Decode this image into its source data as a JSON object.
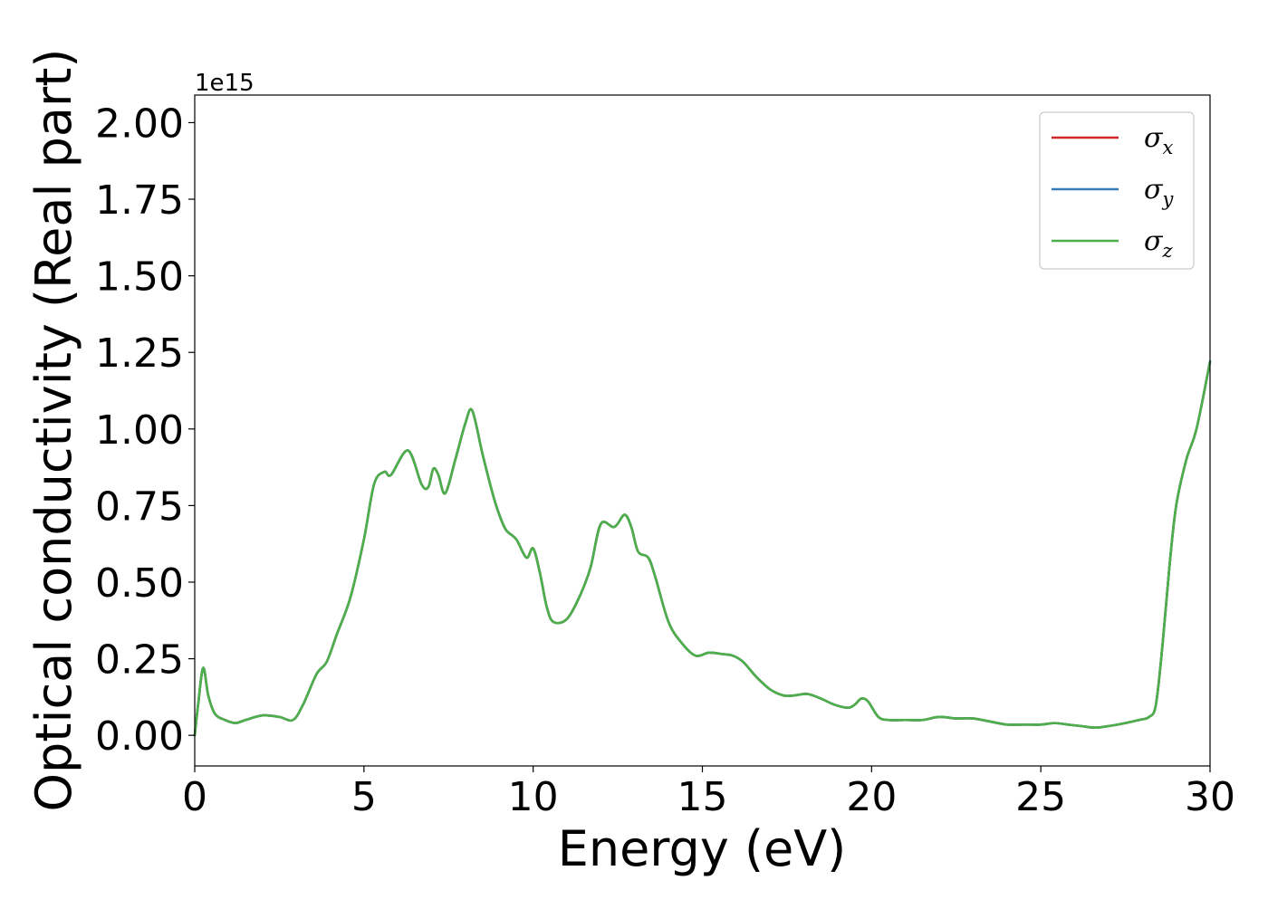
{
  "chart_data": {
    "type": "line",
    "title": "",
    "xlabel": "Energy (eV)",
    "ylabel": "Optical conductivity (Real part)",
    "y_offset_label": "1e15",
    "xlim": [
      0,
      30
    ],
    "ylim": [
      -0.1,
      2.09
    ],
    "x_ticks": [
      0,
      5,
      10,
      15,
      20,
      25,
      30
    ],
    "x_tick_labels": [
      "0",
      "5",
      "10",
      "15",
      "20",
      "25",
      "30"
    ],
    "y_ticks": [
      0.0,
      0.25,
      0.5,
      0.75,
      1.0,
      1.25,
      1.5,
      1.75,
      2.0
    ],
    "y_tick_labels": [
      "0.00",
      "0.25",
      "0.50",
      "0.75",
      "1.00",
      "1.25",
      "1.50",
      "1.75",
      "2.00"
    ],
    "grid": false,
    "legend_position": "top-right",
    "series": [
      {
        "name": "σx",
        "symbol": "σ",
        "subscript": "x",
        "color": "#d62728",
        "x": [
          0,
          0.1,
          0.25,
          0.4,
          0.6,
          0.9,
          1.2,
          1.5,
          2.0,
          2.5,
          2.9,
          3.2,
          3.6,
          3.9,
          4.2,
          4.6,
          5.0,
          5.3,
          5.6,
          5.8,
          6.3,
          6.7,
          6.9,
          7.05,
          7.2,
          7.4,
          7.7,
          8.0,
          8.2,
          8.5,
          8.8,
          9.0,
          9.2,
          9.5,
          9.8,
          10.0,
          10.2,
          10.4,
          10.6,
          11.0,
          11.4,
          11.7,
          12.0,
          12.4,
          12.7,
          12.9,
          13.1,
          13.4,
          13.6,
          14.0,
          14.4,
          14.8,
          15.2,
          15.6,
          15.9,
          16.2,
          16.6,
          17.0,
          17.4,
          17.7,
          18.1,
          18.5,
          18.9,
          19.3,
          19.5,
          19.7,
          19.9,
          20.2,
          20.5,
          21.0,
          21.5,
          22.0,
          22.5,
          23.0,
          23.5,
          24.0,
          24.5,
          25.0,
          25.4,
          25.8,
          26.2,
          26.6,
          27.0,
          27.5,
          27.9,
          28.2,
          28.4,
          28.6,
          28.8,
          29.0,
          29.3,
          29.6,
          30.0
        ],
        "values": [
          0.0,
          0.1,
          0.22,
          0.13,
          0.07,
          0.05,
          0.04,
          0.05,
          0.065,
          0.06,
          0.05,
          0.1,
          0.2,
          0.24,
          0.33,
          0.45,
          0.64,
          0.82,
          0.86,
          0.85,
          0.93,
          0.82,
          0.81,
          0.87,
          0.85,
          0.79,
          0.9,
          1.02,
          1.06,
          0.92,
          0.79,
          0.72,
          0.67,
          0.64,
          0.58,
          0.61,
          0.53,
          0.42,
          0.37,
          0.38,
          0.46,
          0.55,
          0.69,
          0.68,
          0.72,
          0.68,
          0.6,
          0.58,
          0.52,
          0.37,
          0.3,
          0.26,
          0.27,
          0.265,
          0.26,
          0.24,
          0.19,
          0.15,
          0.13,
          0.13,
          0.135,
          0.12,
          0.1,
          0.09,
          0.1,
          0.12,
          0.11,
          0.06,
          0.05,
          0.05,
          0.05,
          0.06,
          0.055,
          0.055,
          0.045,
          0.035,
          0.035,
          0.035,
          0.04,
          0.035,
          0.03,
          0.025,
          0.03,
          0.04,
          0.05,
          0.06,
          0.1,
          0.3,
          0.55,
          0.75,
          0.9,
          1.0,
          1.22
        ]
      },
      {
        "name": "σy",
        "symbol": "σ",
        "subscript": "y",
        "color": "#377eb8",
        "x": [
          0,
          0.1,
          0.25,
          0.4,
          0.6,
          0.9,
          1.2,
          1.5,
          2.0,
          2.5,
          2.9,
          3.2,
          3.6,
          3.9,
          4.2,
          4.6,
          5.0,
          5.3,
          5.6,
          5.8,
          6.3,
          6.7,
          6.9,
          7.05,
          7.2,
          7.4,
          7.7,
          8.0,
          8.2,
          8.5,
          8.8,
          9.0,
          9.2,
          9.5,
          9.8,
          10.0,
          10.2,
          10.4,
          10.6,
          11.0,
          11.4,
          11.7,
          12.0,
          12.4,
          12.7,
          12.9,
          13.1,
          13.4,
          13.6,
          14.0,
          14.4,
          14.8,
          15.2,
          15.6,
          15.9,
          16.2,
          16.6,
          17.0,
          17.4,
          17.7,
          18.1,
          18.5,
          18.9,
          19.3,
          19.5,
          19.7,
          19.9,
          20.2,
          20.5,
          21.0,
          21.5,
          22.0,
          22.5,
          23.0,
          23.5,
          24.0,
          24.5,
          25.0,
          25.4,
          25.8,
          26.2,
          26.6,
          27.0,
          27.5,
          27.9,
          28.2,
          28.4,
          28.6,
          28.8,
          29.0,
          29.3,
          29.6,
          30.0
        ],
        "values": [
          0.0,
          0.1,
          0.22,
          0.13,
          0.07,
          0.05,
          0.04,
          0.05,
          0.065,
          0.06,
          0.05,
          0.1,
          0.2,
          0.24,
          0.33,
          0.45,
          0.64,
          0.82,
          0.86,
          0.85,
          0.93,
          0.82,
          0.81,
          0.87,
          0.85,
          0.79,
          0.9,
          1.02,
          1.06,
          0.92,
          0.79,
          0.72,
          0.67,
          0.64,
          0.58,
          0.61,
          0.53,
          0.42,
          0.37,
          0.38,
          0.46,
          0.55,
          0.69,
          0.68,
          0.72,
          0.68,
          0.6,
          0.58,
          0.52,
          0.37,
          0.3,
          0.26,
          0.27,
          0.265,
          0.26,
          0.24,
          0.19,
          0.15,
          0.13,
          0.13,
          0.135,
          0.12,
          0.1,
          0.09,
          0.1,
          0.12,
          0.11,
          0.06,
          0.05,
          0.05,
          0.05,
          0.06,
          0.055,
          0.055,
          0.045,
          0.035,
          0.035,
          0.035,
          0.04,
          0.035,
          0.03,
          0.025,
          0.03,
          0.04,
          0.05,
          0.06,
          0.1,
          0.3,
          0.55,
          0.75,
          0.9,
          1.0,
          1.22
        ]
      },
      {
        "name": "σz",
        "symbol": "σ",
        "subscript": "z",
        "color": "#4daf4a",
        "x": [
          0,
          0.1,
          0.25,
          0.4,
          0.6,
          0.9,
          1.2,
          1.5,
          2.0,
          2.5,
          2.9,
          3.2,
          3.6,
          3.9,
          4.2,
          4.6,
          5.0,
          5.3,
          5.6,
          5.8,
          6.3,
          6.7,
          6.9,
          7.05,
          7.2,
          7.4,
          7.7,
          8.0,
          8.2,
          8.5,
          8.8,
          9.0,
          9.2,
          9.5,
          9.8,
          10.0,
          10.2,
          10.4,
          10.6,
          11.0,
          11.4,
          11.7,
          12.0,
          12.4,
          12.7,
          12.9,
          13.1,
          13.4,
          13.6,
          14.0,
          14.4,
          14.8,
          15.2,
          15.6,
          15.9,
          16.2,
          16.6,
          17.0,
          17.4,
          17.7,
          18.1,
          18.5,
          18.9,
          19.3,
          19.5,
          19.7,
          19.9,
          20.2,
          20.5,
          21.0,
          21.5,
          22.0,
          22.5,
          23.0,
          23.5,
          24.0,
          24.5,
          25.0,
          25.4,
          25.8,
          26.2,
          26.6,
          27.0,
          27.5,
          27.9,
          28.2,
          28.4,
          28.6,
          28.8,
          29.0,
          29.3,
          29.6,
          30.0
        ],
        "values": [
          0.0,
          0.1,
          0.22,
          0.13,
          0.07,
          0.05,
          0.04,
          0.05,
          0.065,
          0.06,
          0.05,
          0.1,
          0.2,
          0.24,
          0.33,
          0.45,
          0.64,
          0.82,
          0.86,
          0.85,
          0.93,
          0.82,
          0.81,
          0.87,
          0.85,
          0.79,
          0.9,
          1.02,
          1.06,
          0.92,
          0.79,
          0.72,
          0.67,
          0.64,
          0.58,
          0.61,
          0.53,
          0.42,
          0.37,
          0.38,
          0.46,
          0.55,
          0.69,
          0.68,
          0.72,
          0.68,
          0.6,
          0.58,
          0.52,
          0.37,
          0.3,
          0.26,
          0.27,
          0.265,
          0.26,
          0.24,
          0.19,
          0.15,
          0.13,
          0.13,
          0.135,
          0.12,
          0.1,
          0.09,
          0.1,
          0.12,
          0.11,
          0.06,
          0.05,
          0.05,
          0.05,
          0.06,
          0.055,
          0.055,
          0.045,
          0.035,
          0.035,
          0.035,
          0.04,
          0.035,
          0.03,
          0.025,
          0.03,
          0.04,
          0.05,
          0.06,
          0.1,
          0.3,
          0.55,
          0.75,
          0.9,
          1.0,
          1.22
        ]
      }
    ]
  }
}
